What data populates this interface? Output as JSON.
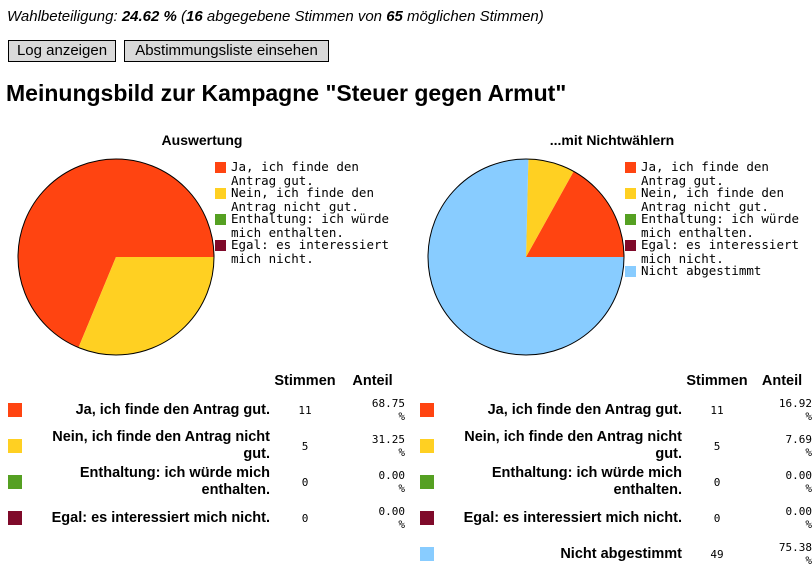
{
  "turnout": {
    "prefix": "Wahlbeteiligung: ",
    "percent": "24.62 %",
    "middle1": " (",
    "cast": "16",
    "middle2": " abgegebene Stimmen von ",
    "possible": "65",
    "suffix": " möglichen Stimmen)"
  },
  "buttons": {
    "log": "Log anzeigen",
    "list": "Abstimmungsliste einsehen"
  },
  "page_title": "Meinungsbild zur Kampagne \"Steuer gegen Armut\"",
  "colors": {
    "yes": "#FF4411",
    "no": "#FFD022",
    "abstain": "#55A022",
    "dontcare": "#7F0A2A",
    "nonvoters": "#88CCFF"
  },
  "chart_data": [
    {
      "type": "pie",
      "title": "Auswertung",
      "categories": [
        "Ja, ich finde den Antrag gut.",
        "Nein, ich finde den Antrag nicht gut.",
        "Enthaltung: ich würde mich enthalten.",
        "Egal: es interessiert mich nicht."
      ],
      "values": [
        11,
        5,
        0,
        0
      ],
      "percentages": [
        68.75,
        31.25,
        0.0,
        0.0
      ],
      "colors": [
        "#FF4411",
        "#FFD022",
        "#55A022",
        "#7F0A2A"
      ],
      "legend_position": "right"
    },
    {
      "type": "pie",
      "title": "...mit Nichtwählern",
      "categories": [
        "Ja, ich finde den Antrag gut.",
        "Nein, ich finde den Antrag nicht gut.",
        "Enthaltung: ich würde mich enthalten.",
        "Egal: es interessiert mich nicht.",
        "Nicht abgestimmt"
      ],
      "values": [
        11,
        5,
        0,
        0,
        49
      ],
      "percentages": [
        16.92,
        7.69,
        0.0,
        0.0,
        75.38
      ],
      "colors": [
        "#FF4411",
        "#FFD022",
        "#55A022",
        "#7F0A2A",
        "#88CCFF"
      ],
      "legend_position": "right"
    }
  ],
  "table_headers": {
    "votes": "Stimmen",
    "share": "Anteil"
  },
  "table_left": [
    {
      "label": "Ja, ich finde den Antrag gut.",
      "votes": "11",
      "share": "68.75",
      "unit": "%",
      "color": "#FF4411"
    },
    {
      "label": "Nein, ich finde den Antrag nicht gut.",
      "votes": "5",
      "share": "31.25",
      "unit": "%",
      "color": "#FFD022"
    },
    {
      "label": "Enthaltung: ich würde mich enthalten.",
      "votes": "0",
      "share": "0.00",
      "unit": "%",
      "color": "#55A022"
    },
    {
      "label": "Egal: es interessiert mich nicht.",
      "votes": "0",
      "share": "0.00",
      "unit": "%",
      "color": "#7F0A2A"
    }
  ],
  "table_right": [
    {
      "label": "Ja, ich finde den Antrag gut.",
      "votes": "11",
      "share": "16.92",
      "unit": "%",
      "color": "#FF4411"
    },
    {
      "label": "Nein, ich finde den Antrag nicht gut.",
      "votes": "5",
      "share": "7.69",
      "unit": "%",
      "color": "#FFD022"
    },
    {
      "label": "Enthaltung: ich würde mich enthalten.",
      "votes": "0",
      "share": "0.00",
      "unit": "%",
      "color": "#55A022"
    },
    {
      "label": "Egal: es interessiert mich nicht.",
      "votes": "0",
      "share": "0.00",
      "unit": "%",
      "color": "#7F0A2A"
    },
    {
      "label": "Nicht abgestimmt",
      "votes": "49",
      "share": "75.38",
      "unit": "%",
      "color": "#88CCFF"
    }
  ]
}
